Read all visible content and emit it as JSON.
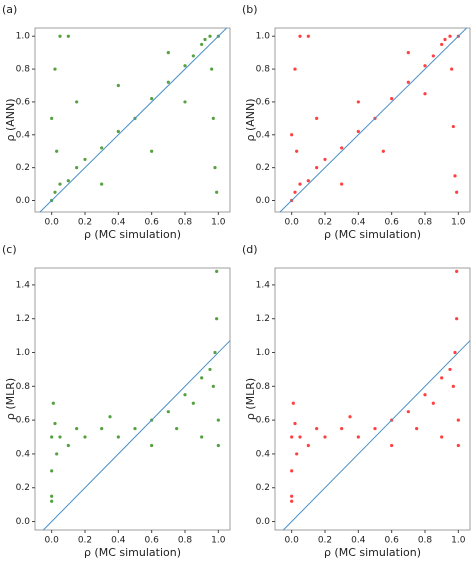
{
  "chart_data": [
    {
      "type": "scatter",
      "label": "(a)",
      "x_label": "ρ (MC simulation)",
      "y_label": "ρ (ANN)",
      "color": "#2a8a10",
      "diagonal_color": "#4a90c8",
      "xlim": [
        -0.1,
        1.07
      ],
      "ylim": [
        -0.07,
        1.05
      ],
      "xticks": [
        {
          "value": 0,
          "label": "0.0"
        },
        0.2,
        0.4,
        0.6,
        0.8,
        {
          "value": 1,
          "label": "1.0"
        }
      ],
      "yticks": [
        {
          "value": 0,
          "label": "0.0"
        },
        0.2,
        0.4,
        0.6,
        0.8,
        {
          "value": 1,
          "label": "1.0"
        }
      ],
      "x": [
        0.0,
        0.02,
        0.05,
        0.1,
        0.15,
        0.2,
        0.3,
        0.4,
        0.5,
        0.6,
        0.7,
        0.8,
        0.85,
        0.9,
        0.95,
        1.0,
        0.97,
        0.98,
        0.96,
        0.02,
        0.05,
        0.1,
        0.0,
        0.03,
        0.3,
        0.6,
        0.4,
        0.8,
        0.92,
        0.99,
        0.15,
        0.7
      ],
      "y": [
        0.0,
        0.05,
        0.1,
        0.12,
        0.2,
        0.25,
        0.32,
        0.42,
        0.5,
        0.62,
        0.72,
        0.82,
        0.88,
        0.95,
        1.0,
        1.0,
        0.5,
        0.2,
        0.8,
        0.8,
        1.0,
        1.0,
        0.5,
        0.3,
        0.1,
        0.3,
        0.7,
        0.6,
        0.98,
        0.05,
        0.6,
        0.9
      ]
    },
    {
      "type": "scatter",
      "label": "(b)",
      "x_label": "ρ (MC simulation)",
      "y_label": "ρ (ANN)",
      "color": "#ff1010",
      "diagonal_color": "#4a90c8",
      "xlim": [
        -0.1,
        1.07
      ],
      "ylim": [
        -0.07,
        1.05
      ],
      "xticks": [
        {
          "value": 0,
          "label": "0.0"
        },
        0.2,
        0.4,
        0.6,
        0.8,
        {
          "value": 1,
          "label": "1.0"
        }
      ],
      "yticks": [
        {
          "value": 0,
          "label": "0.0"
        },
        0.2,
        0.4,
        0.6,
        0.8,
        {
          "value": 1,
          "label": "1.0"
        }
      ],
      "x": [
        0.0,
        0.02,
        0.05,
        0.1,
        0.15,
        0.2,
        0.3,
        0.4,
        0.5,
        0.6,
        0.7,
        0.8,
        0.85,
        0.9,
        0.95,
        1.0,
        0.97,
        0.98,
        0.96,
        0.02,
        0.05,
        0.1,
        0.0,
        0.03,
        0.3,
        0.55,
        0.4,
        0.8,
        0.92,
        0.99,
        0.15,
        0.7
      ],
      "y": [
        0.0,
        0.05,
        0.1,
        0.12,
        0.2,
        0.25,
        0.32,
        0.42,
        0.5,
        0.62,
        0.72,
        0.82,
        0.88,
        0.95,
        1.0,
        1.0,
        0.45,
        0.15,
        0.8,
        0.8,
        1.0,
        1.0,
        0.4,
        0.3,
        0.1,
        0.3,
        0.6,
        0.65,
        0.98,
        0.05,
        0.5,
        0.9
      ]
    },
    {
      "type": "scatter",
      "label": "(c)",
      "x_label": "ρ (MC simulation)",
      "y_label": "ρ (MLR)",
      "color": "#2a8a10",
      "diagonal_color": "#4a90c8",
      "xlim": [
        -0.1,
        1.07
      ],
      "ylim": [
        -0.05,
        1.5
      ],
      "xticks": [
        {
          "value": 0,
          "label": "0.0"
        },
        0.2,
        0.4,
        0.6,
        0.8,
        {
          "value": 1,
          "label": "1.0"
        }
      ],
      "yticks": [
        {
          "value": 0,
          "label": "0.0"
        },
        0.2,
        0.4,
        0.6,
        0.8,
        {
          "value": 1,
          "label": "1.0"
        },
        1.2,
        1.4
      ],
      "x": [
        0.0,
        0.0,
        0.0,
        0.02,
        0.03,
        0.05,
        0.1,
        0.15,
        0.2,
        0.3,
        0.4,
        0.5,
        0.6,
        0.7,
        0.75,
        0.8,
        0.85,
        0.9,
        0.95,
        0.98,
        0.99,
        0.99,
        1.0,
        1.0,
        0.97,
        0.01,
        0.0,
        0.9,
        0.6,
        0.35
      ],
      "y": [
        0.15,
        0.3,
        0.5,
        0.58,
        0.4,
        0.5,
        0.45,
        0.55,
        0.5,
        0.55,
        0.5,
        0.55,
        0.6,
        0.65,
        0.55,
        0.75,
        0.7,
        0.85,
        0.9,
        1.0,
        1.2,
        1.48,
        0.6,
        0.45,
        0.8,
        0.7,
        0.12,
        0.5,
        0.45,
        0.62
      ]
    },
    {
      "type": "scatter",
      "label": "(d)",
      "x_label": "ρ (MC simulation)",
      "y_label": "ρ (MLR)",
      "color": "#ff1010",
      "diagonal_color": "#4a90c8",
      "xlim": [
        -0.1,
        1.07
      ],
      "ylim": [
        -0.05,
        1.5
      ],
      "xticks": [
        {
          "value": 0,
          "label": "0.0"
        },
        0.2,
        0.4,
        0.6,
        0.8,
        {
          "value": 1,
          "label": "1.0"
        }
      ],
      "yticks": [
        {
          "value": 0,
          "label": "0.0"
        },
        0.2,
        0.4,
        0.6,
        0.8,
        {
          "value": 1,
          "label": "1.0"
        },
        1.2,
        1.4
      ],
      "x": [
        0.0,
        0.0,
        0.0,
        0.02,
        0.03,
        0.05,
        0.1,
        0.15,
        0.2,
        0.3,
        0.4,
        0.5,
        0.6,
        0.7,
        0.75,
        0.8,
        0.85,
        0.9,
        0.95,
        0.98,
        0.99,
        0.99,
        1.0,
        1.0,
        0.97,
        0.01,
        0.0,
        0.9,
        0.6,
        0.35
      ],
      "y": [
        0.15,
        0.3,
        0.5,
        0.58,
        0.4,
        0.5,
        0.45,
        0.55,
        0.5,
        0.55,
        0.5,
        0.55,
        0.6,
        0.65,
        0.55,
        0.75,
        0.7,
        0.85,
        0.9,
        1.0,
        1.2,
        1.48,
        0.6,
        0.45,
        0.8,
        0.7,
        0.12,
        0.5,
        0.45,
        0.62
      ]
    }
  ]
}
